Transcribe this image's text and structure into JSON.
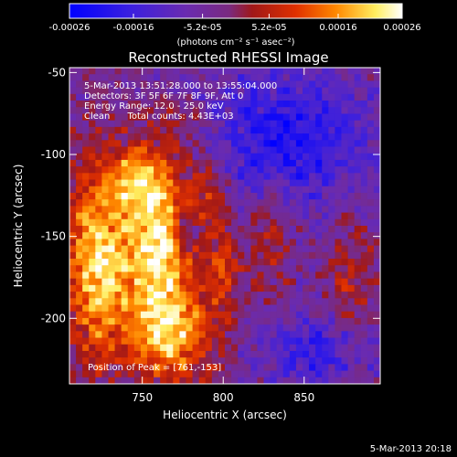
{
  "chart_data": {
    "type": "heatmap",
    "title": "Reconstructed RHESSI Image",
    "xlabel": "Heliocentric X (arcsec)",
    "ylabel": "Heliocentric Y (arcsec)",
    "xlim": [
      705,
      897
    ],
    "ylim": [
      -240,
      -47
    ],
    "x_ticks": [
      750,
      800,
      850
    ],
    "x_tick_labels": [
      "750",
      "800",
      "850"
    ],
    "y_ticks": [
      -50,
      -100,
      -150,
      -200
    ],
    "y_tick_labels": [
      "-50",
      "-100",
      "-150",
      "-200"
    ],
    "colorbar": {
      "range": [
        -0.00026,
        0.00026
      ],
      "ticks": [
        -0.00026,
        -0.00016,
        -5.2e-05,
        5.2e-05,
        0.00016,
        0.00026
      ],
      "tick_labels": [
        "-0.00026",
        "-0.00016",
        "-5.2e-05",
        "5.2e-05",
        "0.00016",
        "0.00026"
      ],
      "units": "(photons cm⁻² s⁻¹ asec⁻²)",
      "colors": [
        "#0000ff",
        "#5a2bd0",
        "#7a2ca0",
        "#a01010",
        "#d83000",
        "#ff8800",
        "#ffff80",
        "#ffffff"
      ]
    },
    "annotations": [
      "5-Mar-2013 13:51:28.000 to 13:55:04.000",
      "Detectors: 3F 5F 6F 7F 8F 9F, Att 0",
      "Energy Range: 12.0 - 25.0 keV",
      "Clean      Total counts: 4.43E+03"
    ],
    "peak_label": "Position of Peak = [761,-153]",
    "peak": [
      761,
      -153
    ],
    "sources": [
      {
        "x": 760,
        "y": -150,
        "sx": 14,
        "sy": 36,
        "amp": 1.0
      },
      {
        "x": 745,
        "y": -115,
        "sx": 10,
        "sy": 12,
        "amp": 0.55
      },
      {
        "x": 722,
        "y": -165,
        "sx": 14,
        "sy": 40,
        "amp": 0.9
      },
      {
        "x": 768,
        "y": -210,
        "sx": 20,
        "sy": 20,
        "amp": 0.7
      },
      {
        "x": 790,
        "y": -120,
        "sx": 8,
        "sy": 12,
        "amp": 0.45
      },
      {
        "x": 800,
        "y": -165,
        "sx": 8,
        "sy": 20,
        "amp": 0.45
      },
      {
        "x": 830,
        "y": -145,
        "sx": 9,
        "sy": 25,
        "amp": 0.35
      },
      {
        "x": 878,
        "y": -185,
        "sx": 10,
        "sy": 35,
        "amp": 0.3
      },
      {
        "x": 780,
        "y": -80,
        "sx": 15,
        "sy": 8,
        "amp": 0.2
      }
    ],
    "negative_regions": [
      {
        "x": 840,
        "y": -90,
        "sx": 35,
        "sy": 30,
        "amp": -0.6
      },
      {
        "x": 860,
        "y": -220,
        "sx": 25,
        "sy": 15,
        "amp": -0.5
      },
      {
        "x": 775,
        "y": -145,
        "sx": 6,
        "sy": 10,
        "amp": -0.35
      }
    ]
  },
  "timestamp": "5-Mar-2013 20:18"
}
